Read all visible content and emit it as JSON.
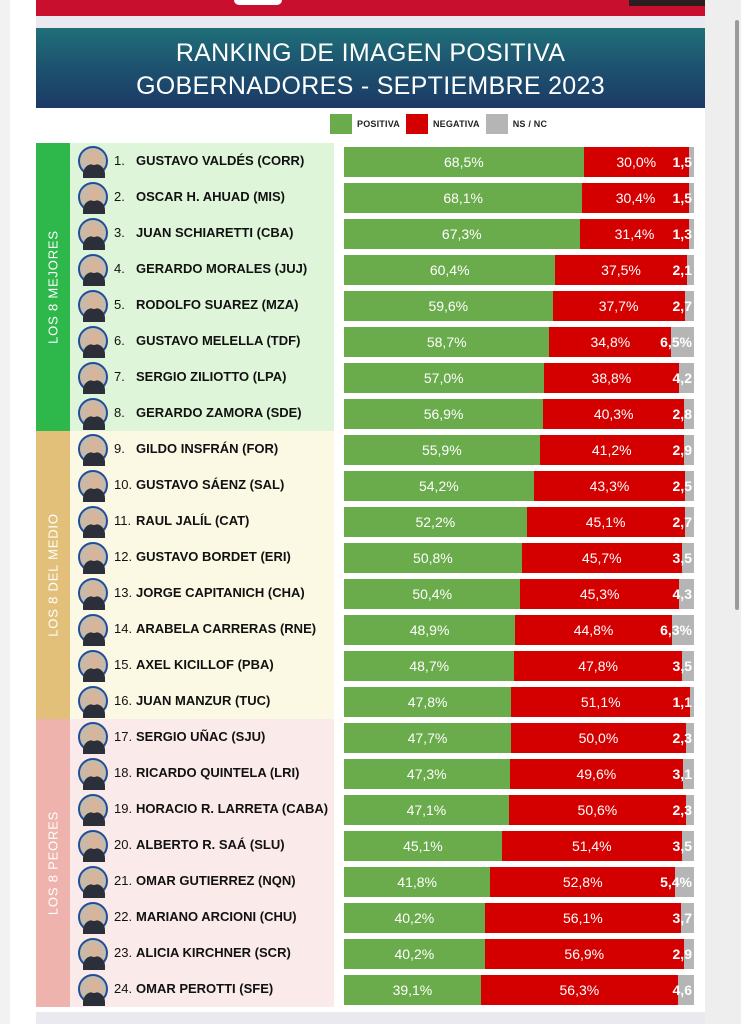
{
  "header": {
    "line1": "RANKING DE IMAGEN POSITIVA",
    "line2": "GOBERNADORES - SEPTIEMBRE 2023"
  },
  "legend": [
    {
      "label": "POSITIVA",
      "color": "#6aac4c"
    },
    {
      "label": "NEGATIVA",
      "color": "#d40000"
    },
    {
      "label": "NS / NC",
      "color": "#b5b5b5"
    }
  ],
  "groups": [
    {
      "label": "LOS 8 MEJORES",
      "color": "#2eb84b",
      "bg": "#dff5d9"
    },
    {
      "label": "LOS 8 DEL MEDIO",
      "color": "#e2c07a",
      "bg": "#fbf8e4"
    },
    {
      "label": "LOS 8 PEORES",
      "color": "#efb3ad",
      "bg": "#fbeaea"
    }
  ],
  "chart_data": {
    "type": "bar",
    "stacked": true,
    "orientation": "horizontal",
    "title": "RANKING DE IMAGEN POSITIVA GOBERNADORES - SEPTIEMBRE 2023",
    "series_names": [
      "POSITIVA",
      "NEGATIVA",
      "NS / NC"
    ],
    "rows": [
      {
        "rank": "1.",
        "name": "GUSTAVO VALDÉS (CORR)",
        "pos": 68.5,
        "neg": 30.0,
        "ns": 1.5,
        "pos_label": "68,5%",
        "neg_label": "30,0%",
        "ns_label": "1,5"
      },
      {
        "rank": "2.",
        "name": "OSCAR H. AHUAD (MIS)",
        "pos": 68.1,
        "neg": 30.4,
        "ns": 1.5,
        "pos_label": "68,1%",
        "neg_label": "30,4%",
        "ns_label": "1,5"
      },
      {
        "rank": "3.",
        "name": "JUAN SCHIARETTI (CBA)",
        "pos": 67.3,
        "neg": 31.4,
        "ns": 1.3,
        "pos_label": "67,3%",
        "neg_label": "31,4%",
        "ns_label": "1,3"
      },
      {
        "rank": "4.",
        "name": "GERARDO MORALES (JUJ)",
        "pos": 60.4,
        "neg": 37.5,
        "ns": 2.1,
        "pos_label": "60,4%",
        "neg_label": "37,5%",
        "ns_label": "2,1"
      },
      {
        "rank": "5.",
        "name": "RODOLFO SUAREZ (MZA)",
        "pos": 59.6,
        "neg": 37.7,
        "ns": 2.7,
        "pos_label": "59,6%",
        "neg_label": "37,7%",
        "ns_label": "2,7"
      },
      {
        "rank": "6.",
        "name": "GUSTAVO MELELLA (TDF)",
        "pos": 58.7,
        "neg": 34.8,
        "ns": 6.5,
        "pos_label": "58,7%",
        "neg_label": "34,8%",
        "ns_label": "6,5%"
      },
      {
        "rank": "7.",
        "name": "SERGIO ZILIOTTO (LPA)",
        "pos": 57.0,
        "neg": 38.8,
        "ns": 4.2,
        "pos_label": "57,0%",
        "neg_label": "38,8%",
        "ns_label": "4,2"
      },
      {
        "rank": "8.",
        "name": "GERARDO ZAMORA (SDE)",
        "pos": 56.9,
        "neg": 40.3,
        "ns": 2.8,
        "pos_label": "56,9%",
        "neg_label": "40,3%",
        "ns_label": "2,8"
      },
      {
        "rank": "9.",
        "name": "GILDO INSFRÁN (FOR)",
        "pos": 55.9,
        "neg": 41.2,
        "ns": 2.9,
        "pos_label": "55,9%",
        "neg_label": "41,2%",
        "ns_label": "2,9"
      },
      {
        "rank": "10.",
        "name": "GUSTAVO SÁENZ (SAL)",
        "pos": 54.2,
        "neg": 43.3,
        "ns": 2.5,
        "pos_label": "54,2%",
        "neg_label": "43,3%",
        "ns_label": "2,5"
      },
      {
        "rank": "11.",
        "name": "RAUL JALÍL (CAT)",
        "pos": 52.2,
        "neg": 45.1,
        "ns": 2.7,
        "pos_label": "52,2%",
        "neg_label": "45,1%",
        "ns_label": "2,7"
      },
      {
        "rank": "12.",
        "name": "GUSTAVO BORDET (ERI)",
        "pos": 50.8,
        "neg": 45.7,
        "ns": 3.5,
        "pos_label": "50,8%",
        "neg_label": "45,7%",
        "ns_label": "3,5"
      },
      {
        "rank": "13.",
        "name": "JORGE CAPITANICH (CHA)",
        "pos": 50.4,
        "neg": 45.3,
        "ns": 4.3,
        "pos_label": "50,4%",
        "neg_label": "45,3%",
        "ns_label": "4,3"
      },
      {
        "rank": "14.",
        "name": "ARABELA CARRERAS (RNE)",
        "pos": 48.9,
        "neg": 44.8,
        "ns": 6.3,
        "pos_label": "48,9%",
        "neg_label": "44,8%",
        "ns_label": "6,3%"
      },
      {
        "rank": "15.",
        "name": "AXEL KICILLOF (PBA)",
        "pos": 48.7,
        "neg": 47.8,
        "ns": 3.5,
        "pos_label": "48,7%",
        "neg_label": "47,8%",
        "ns_label": "3,5"
      },
      {
        "rank": "16.",
        "name": "JUAN MANZUR (TUC)",
        "pos": 47.8,
        "neg": 51.1,
        "ns": 1.1,
        "pos_label": "47,8%",
        "neg_label": "51,1%",
        "ns_label": "1,1"
      },
      {
        "rank": "17.",
        "name": "SERGIO UÑAC (SJU)",
        "pos": 47.7,
        "neg": 50.0,
        "ns": 2.3,
        "pos_label": "47,7%",
        "neg_label": "50,0%",
        "ns_label": "2,3"
      },
      {
        "rank": "18.",
        "name": "RICARDO QUINTELA (LRI)",
        "pos": 47.3,
        "neg": 49.6,
        "ns": 3.1,
        "pos_label": "47,3%",
        "neg_label": "49,6%",
        "ns_label": "3,1"
      },
      {
        "rank": "19.",
        "name": "HORACIO R. LARRETA (CABA)",
        "pos": 47.1,
        "neg": 50.6,
        "ns": 2.3,
        "pos_label": "47,1%",
        "neg_label": "50,6%",
        "ns_label": "2,3"
      },
      {
        "rank": "20.",
        "name": "ALBERTO R. SAÁ (SLU)",
        "pos": 45.1,
        "neg": 51.4,
        "ns": 3.5,
        "pos_label": "45,1%",
        "neg_label": "51,4%",
        "ns_label": "3,5"
      },
      {
        "rank": "21.",
        "name": "OMAR GUTIERREZ (NQN)",
        "pos": 41.8,
        "neg": 52.8,
        "ns": 5.4,
        "pos_label": "41,8%",
        "neg_label": "52,8%",
        "ns_label": "5,4%"
      },
      {
        "rank": "22.",
        "name": "MARIANO ARCIONI (CHU)",
        "pos": 40.2,
        "neg": 56.1,
        "ns": 3.7,
        "pos_label": "40,2%",
        "neg_label": "56,1%",
        "ns_label": "3,7"
      },
      {
        "rank": "23.",
        "name": "ALICIA KIRCHNER (SCR)",
        "pos": 40.2,
        "neg": 56.9,
        "ns": 2.9,
        "pos_label": "40,2%",
        "neg_label": "56,9%",
        "ns_label": "2,9"
      },
      {
        "rank": "24.",
        "name": "OMAR PEROTTI (SFE)",
        "pos": 39.1,
        "neg": 56.3,
        "ns": 4.6,
        "pos_label": "39,1%",
        "neg_label": "56,3%",
        "ns_label": "4,6"
      }
    ]
  }
}
